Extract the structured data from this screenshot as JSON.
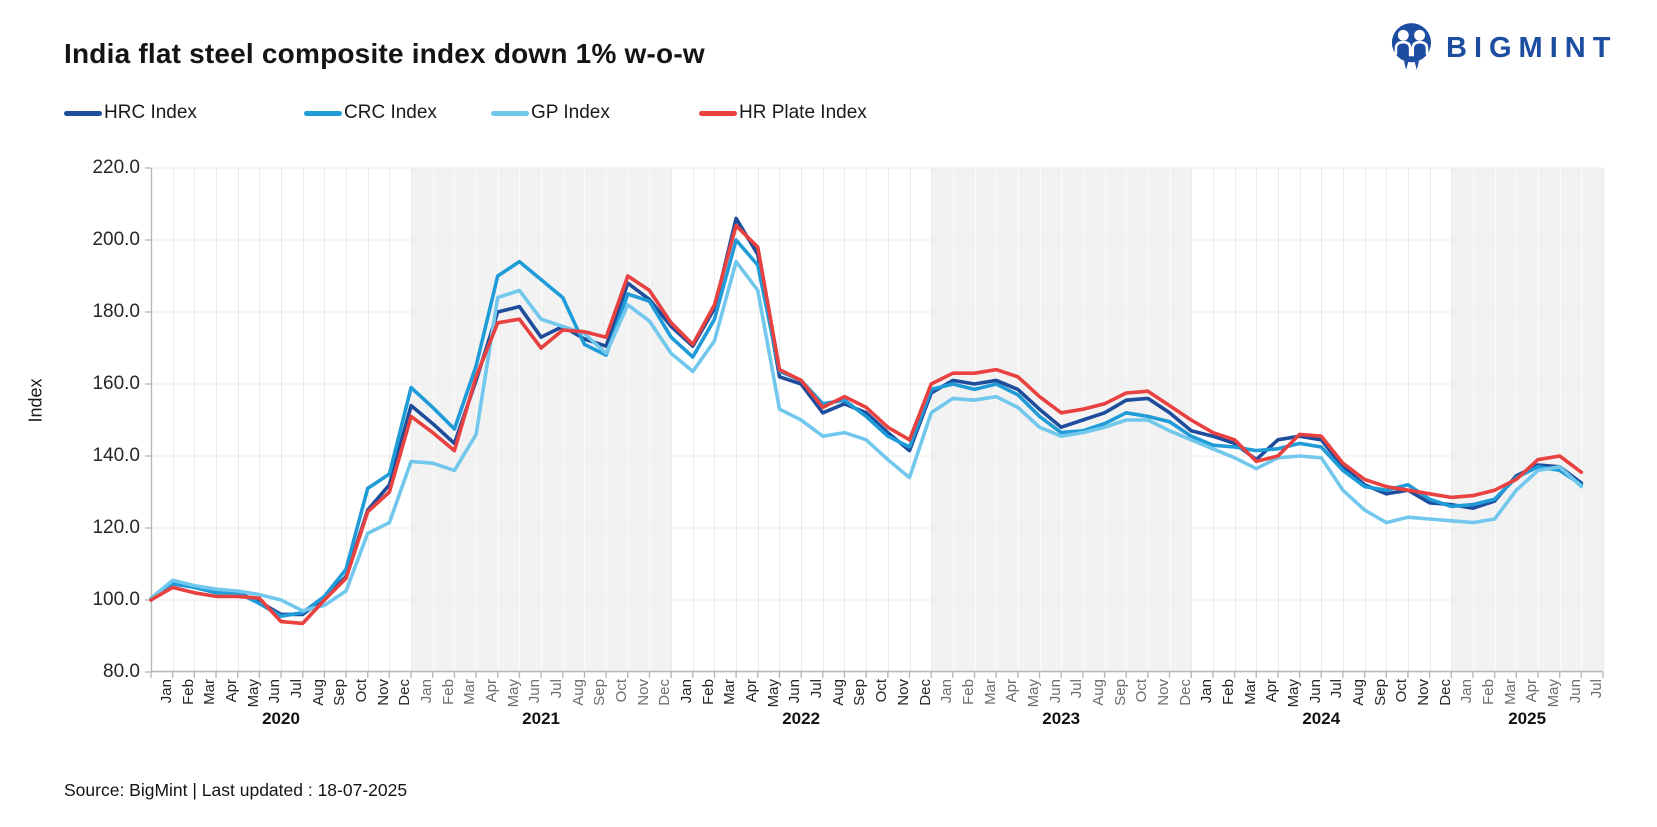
{
  "header": {
    "title": "India flat steel composite index down 1% w-o-w",
    "logo_text": "BIGMINT",
    "logo_color": "#1c4da0"
  },
  "legend": [
    {
      "label": "HRC Index",
      "color": "#1e4d9c"
    },
    {
      "label": "CRC Index",
      "color": "#1f9cd8"
    },
    {
      "label": "GP Index",
      "color": "#72c7ec"
    },
    {
      "label": "HR Plate Index",
      "color": "#e8413f"
    }
  ],
  "footer": {
    "source": "Source: BigMint | Last updated : 18-07-2025"
  },
  "chart_data": {
    "type": "line",
    "title": "India flat steel composite index down 1% w-o-w",
    "xlabel": "",
    "ylabel": "Index",
    "y_axis": {
      "min": 80,
      "max": 220,
      "step": 20,
      "tick_decimals": 1
    },
    "grid": true,
    "legend_position": "top-left",
    "colors": {
      "band_fill": "#f2f2f2",
      "gridline": "#ebebeb",
      "gridline_on_band": "#fbfbfb",
      "axis": "#b8b8b8"
    },
    "x_years": [
      {
        "label": "2020",
        "months": 12,
        "shaded": false
      },
      {
        "label": "2021",
        "months": 12,
        "shaded": true
      },
      {
        "label": "2022",
        "months": 12,
        "shaded": false
      },
      {
        "label": "2023",
        "months": 12,
        "shaded": true
      },
      {
        "label": "2024",
        "months": 12,
        "shaded": false
      },
      {
        "label": "2025",
        "months": 7,
        "shaded": true
      }
    ],
    "x_labels_months": [
      "Jan",
      "Feb",
      "Mar",
      "Apr",
      "May",
      "Jun",
      "Jul",
      "Aug",
      "Sep",
      "Oct",
      "Nov",
      "Dec",
      "Jan",
      "Feb",
      "Mar",
      "Apr",
      "May",
      "Jun",
      "Jul",
      "Aug",
      "Sep",
      "Oct",
      "Nov",
      "Dec",
      "Jan",
      "Feb",
      "Mar",
      "Apr",
      "May",
      "Jun",
      "Jul",
      "Aug",
      "Sep",
      "Oct",
      "Nov",
      "Dec",
      "Jan",
      "Feb",
      "Mar",
      "Apr",
      "May",
      "Jun",
      "Jul",
      "Aug",
      "Sep",
      "Oct",
      "Nov",
      "Dec",
      "Jan",
      "Feb",
      "Mar",
      "Apr",
      "May",
      "Jun",
      "Jul",
      "Aug",
      "Sep",
      "Oct",
      "Nov",
      "Dec",
      "Jan",
      "Feb",
      "Mar",
      "Apr",
      "May",
      "Jun",
      "Jul"
    ],
    "series": [
      {
        "name": "HRC Index",
        "color": "#1e4d9c",
        "values": [
          100,
          105,
          103.5,
          102.5,
          102,
          99.5,
          96,
          96,
          100.5,
          106.5,
          125,
          132,
          154,
          149,
          143.5,
          161,
          180,
          181.5,
          173,
          176,
          172.5,
          170.5,
          188,
          183.5,
          176,
          170.5,
          181,
          206,
          196,
          162,
          160,
          152,
          154.5,
          152,
          146.5,
          141.5,
          157.5,
          161,
          160,
          161,
          158.5,
          153,
          148,
          150,
          152,
          155.5,
          156,
          152,
          147,
          145.5,
          143.5,
          139,
          144.5,
          145.5,
          144.5,
          137,
          132,
          129.5,
          130.5,
          127,
          126.5,
          125.5,
          127.5,
          134.5,
          137.5,
          137,
          132.5
        ]
      },
      {
        "name": "CRC Index",
        "color": "#1f9cd8",
        "values": [
          100.5,
          104.5,
          103.5,
          102,
          102,
          99,
          95.5,
          96.5,
          101,
          108.5,
          131,
          135,
          159,
          153.5,
          147.5,
          165,
          190,
          194,
          189,
          184,
          171,
          168,
          185,
          183,
          173,
          167.5,
          178,
          200,
          193,
          163.5,
          161,
          154.5,
          155.5,
          151,
          145.5,
          142.5,
          158.5,
          160,
          158.5,
          160,
          157,
          151,
          146.5,
          147,
          149,
          152,
          151,
          149.5,
          145.5,
          143,
          142.5,
          141.5,
          142,
          143.5,
          142.5,
          136,
          131.5,
          130.5,
          132,
          128,
          126,
          126.5,
          128,
          134,
          137,
          136,
          132
        ]
      },
      {
        "name": "GP Index",
        "color": "#72c7ec",
        "values": [
          100.5,
          105.5,
          104,
          103,
          102.5,
          101.5,
          100,
          97,
          98.5,
          102.5,
          118.5,
          121.5,
          138.5,
          138,
          136,
          146,
          184,
          186,
          178,
          176,
          174,
          168.5,
          182,
          177.5,
          168.5,
          163.5,
          172,
          194,
          186,
          153,
          150,
          145.5,
          146.5,
          144.5,
          139,
          134,
          152,
          156,
          155.5,
          156.5,
          153.5,
          148,
          145.5,
          146.5,
          148,
          150,
          150,
          147,
          144.5,
          142,
          139.5,
          136.5,
          139.5,
          140,
          139.5,
          130.5,
          125,
          121.5,
          123,
          122.5,
          122,
          121.5,
          122.5,
          130.5,
          136,
          137,
          131.5
        ]
      },
      {
        "name": "HR Plate Index",
        "color": "#e8413f",
        "values": [
          100,
          103.5,
          102,
          101,
          101,
          100.5,
          94,
          93.5,
          100,
          106,
          124.5,
          130,
          151,
          146.5,
          141.5,
          162,
          177,
          178,
          170,
          175,
          174.5,
          173,
          190,
          186,
          177,
          171,
          182,
          204,
          198,
          164,
          161,
          153.5,
          156.5,
          153.5,
          148,
          144.5,
          160,
          163,
          163,
          164,
          162,
          156.5,
          152,
          153,
          154.5,
          157.5,
          158,
          154,
          150,
          146.5,
          144.5,
          138.5,
          140,
          146,
          145.5,
          138,
          133.5,
          131.5,
          130.5,
          129.5,
          128.5,
          129,
          130.5,
          133.5,
          139,
          140,
          135.5
        ]
      }
    ]
  }
}
